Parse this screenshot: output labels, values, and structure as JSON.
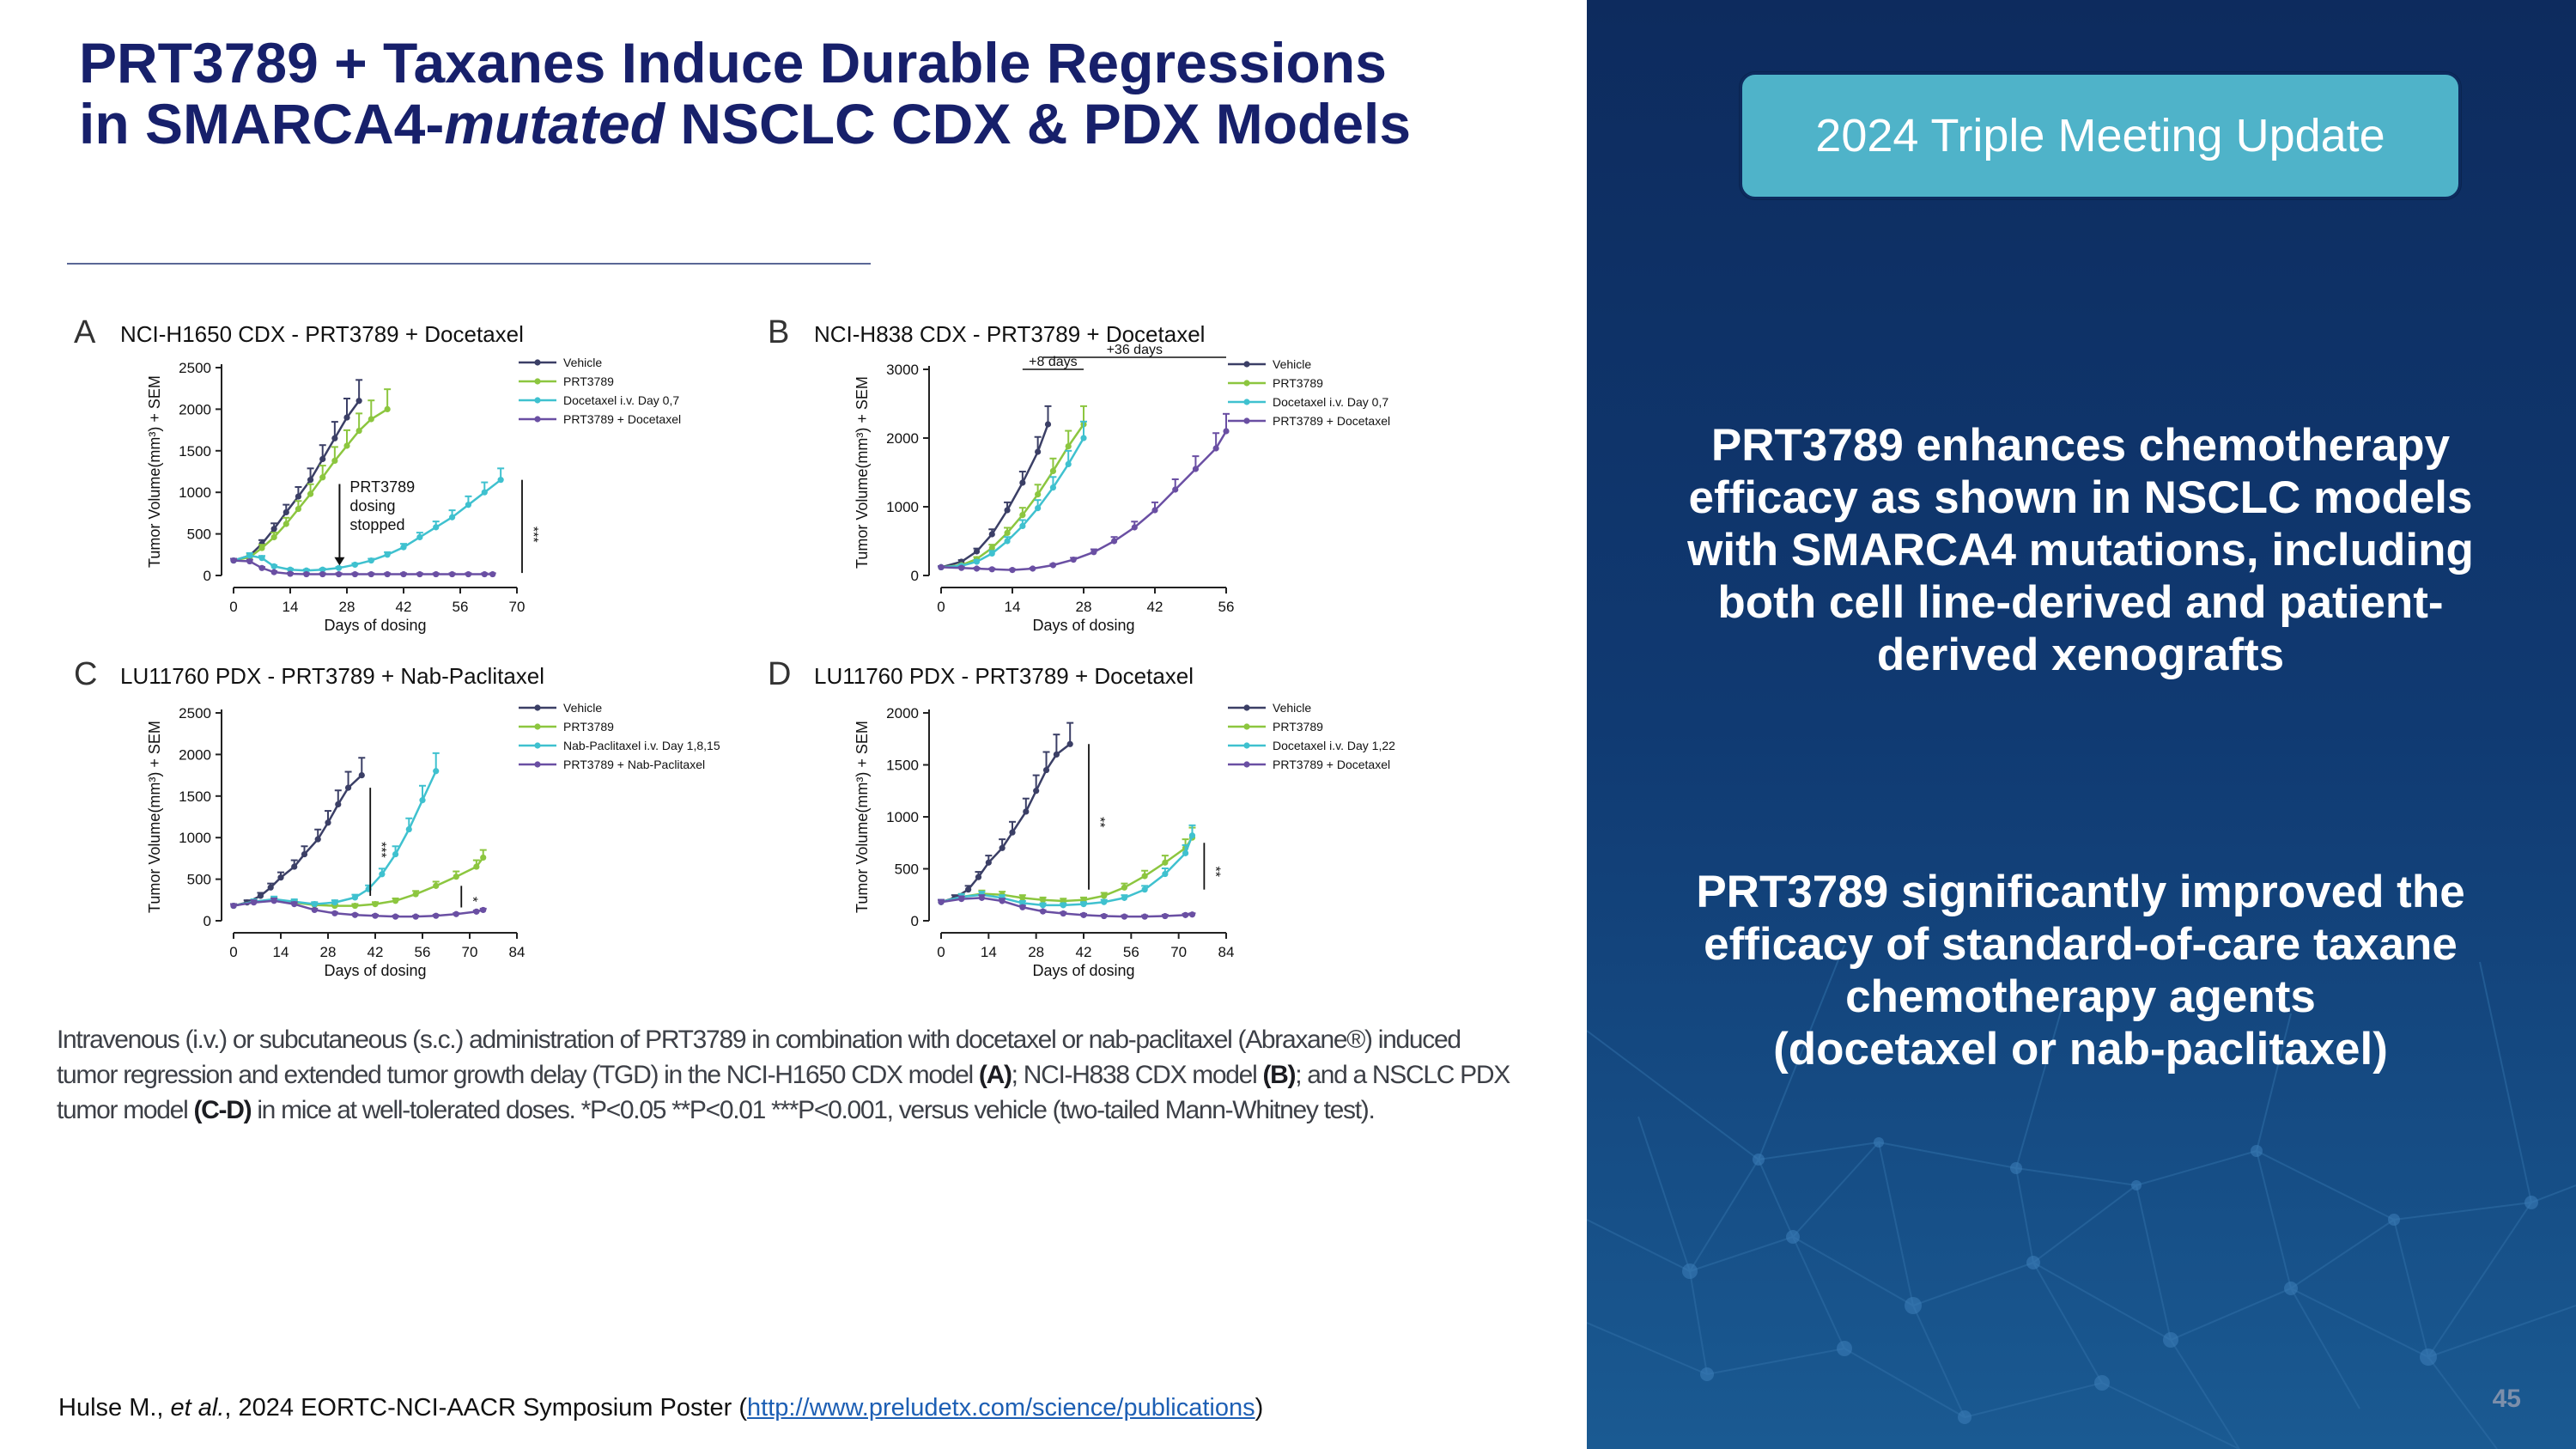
{
  "slide": {
    "title_line1": "PRT3789 + Taxanes Induce Durable Regressions",
    "title_line2_a": "in SMARCA4-",
    "title_line2_b": "mutated",
    "title_line2_c": " NSCLC CDX & PDX Models",
    "badge": "2024 Triple Meeting Update",
    "message1": "PRT3789 enhances chemotherapy efficacy as shown in NSCLC models with SMARCA4 mutations, including both cell line-derived and patient-derived xenografts",
    "message2_a": "PRT3789 significantly improved the efficacy of standard-of-care taxane chemotherapy agents",
    "message2_b": "(docetaxel or nab-paclitaxel)",
    "page_number": "45",
    "caption_1": "Intravenous (i.v.) or subcutaneous (s.c.) administration of PRT3789 in combination with docetaxel or nab-paclitaxel (Abraxane®) induced tumor regression and extended tumor growth delay (TGD) in the NCI-H1650 CDX model ",
    "caption_A": "(A)",
    "caption_2": "; NCI-H838 CDX model ",
    "caption_B": "(B)",
    "caption_3": "; and a NSCLC PDX tumor model ",
    "caption_CD": "(C-D)",
    "caption_4": " in mice at well-tolerated doses.  *P<0.05 **P<0.01 ***P<0.001, versus vehicle (two-tailed Mann-Whitney test).",
    "citation_a": "Hulse M., ",
    "citation_b": "et al.",
    "citation_c": ", 2024 EORTC-NCI-AACR Symposium Poster (",
    "citation_link": "http://www.preludetx.com/science/publications",
    "citation_d": ")"
  },
  "colors": {
    "title": "#17206b",
    "vehicle": "#3b3f66",
    "prt3789": "#8cc63f",
    "chemo": "#3fc1cf",
    "combo": "#6a4fa3",
    "panel_bg": "#0d2b5e",
    "badge": "#4fb3c9"
  },
  "chart_data": [
    {
      "panel": "A",
      "title": "NCI-H1650 CDX - PRT3789 + Docetaxel",
      "type": "line",
      "xlabel": "Days of dosing",
      "ylabel": "Tumor Volume(mm³) + SEM",
      "xlim": [
        0,
        70
      ],
      "ylim": [
        0,
        2500
      ],
      "xticks": [
        0,
        14,
        28,
        42,
        56,
        70
      ],
      "yticks": [
        0,
        500,
        1000,
        1500,
        2000,
        2500
      ],
      "legend": [
        "Vehicle",
        "PRT3789",
        "Docetaxel i.v. Day 0,7",
        "PRT3789 + Docetaxel"
      ],
      "annotation": [
        "PRT3789",
        "dosing",
        "stopped"
      ],
      "significance": "***",
      "series": [
        {
          "name": "Vehicle",
          "x": [
            0,
            4,
            7,
            10,
            13,
            16,
            19,
            22,
            25,
            28,
            31
          ],
          "y": [
            180,
            240,
            380,
            560,
            760,
            950,
            1150,
            1400,
            1650,
            1900,
            2100
          ]
        },
        {
          "name": "PRT3789",
          "x": [
            0,
            4,
            7,
            10,
            13,
            16,
            19,
            22,
            25,
            28,
            31,
            34,
            38
          ],
          "y": [
            180,
            220,
            330,
            460,
            620,
            800,
            980,
            1180,
            1380,
            1560,
            1740,
            1880,
            2000
          ]
        },
        {
          "name": "Docetaxel i.v. Day 0,7",
          "x": [
            0,
            4,
            7,
            10,
            14,
            18,
            22,
            26,
            30,
            34,
            38,
            42,
            46,
            50,
            54,
            58,
            62,
            66
          ],
          "y": [
            180,
            240,
            210,
            110,
            70,
            60,
            70,
            90,
            130,
            180,
            250,
            340,
            460,
            580,
            700,
            850,
            1000,
            1150
          ]
        },
        {
          "name": "PRT3789 + Docetaxel",
          "x": [
            0,
            4,
            7,
            10,
            14,
            18,
            22,
            26,
            30,
            34,
            38,
            42,
            46,
            50,
            54,
            58,
            62,
            64
          ],
          "y": [
            180,
            170,
            90,
            40,
            20,
            15,
            15,
            15,
            15,
            15,
            15,
            15,
            15,
            15,
            15,
            15,
            15,
            15
          ]
        }
      ]
    },
    {
      "panel": "B",
      "title": "NCI-H838 CDX - PRT3789 + Docetaxel",
      "type": "line",
      "xlabel": "Days of dosing",
      "ylabel": "Tumor Volume(mm³) + SEM",
      "xlim": [
        0,
        56
      ],
      "ylim": [
        0,
        3000
      ],
      "xticks": [
        0,
        14,
        28,
        42,
        56
      ],
      "yticks": [
        0,
        1000,
        2000,
        3000
      ],
      "legend": [
        "Vehicle",
        "PRT3789",
        "Docetaxel i.v. Day 0,7",
        "PRT3789 + Docetaxel"
      ],
      "brackets": [
        "+8 days",
        "+36 days"
      ],
      "series": [
        {
          "name": "Vehicle",
          "x": [
            0,
            4,
            7,
            10,
            13,
            16,
            19,
            21
          ],
          "y": [
            120,
            200,
            350,
            600,
            950,
            1350,
            1800,
            2200
          ]
        },
        {
          "name": "PRT3789",
          "x": [
            0,
            4,
            7,
            10,
            13,
            16,
            19,
            22,
            25,
            28
          ],
          "y": [
            120,
            150,
            240,
            400,
            620,
            880,
            1180,
            1520,
            1880,
            2200
          ]
        },
        {
          "name": "Docetaxel i.v. Day 0,7",
          "x": [
            0,
            4,
            7,
            10,
            13,
            16,
            19,
            22,
            25,
            28
          ],
          "y": [
            120,
            140,
            200,
            320,
            500,
            720,
            980,
            1280,
            1620,
            2000
          ]
        },
        {
          "name": "PRT3789 + Docetaxel",
          "x": [
            0,
            4,
            7,
            10,
            14,
            18,
            22,
            26,
            30,
            34,
            38,
            42,
            46,
            50,
            54,
            56
          ],
          "y": [
            120,
            110,
            100,
            90,
            80,
            100,
            150,
            230,
            340,
            500,
            700,
            950,
            1250,
            1550,
            1850,
            2100
          ]
        }
      ]
    },
    {
      "panel": "C",
      "title": "LU11760 PDX - PRT3789 + Nab-Paclitaxel",
      "type": "line",
      "xlabel": "Days of dosing",
      "ylabel": "Tumor Volume(mm³) + SEM",
      "xlim": [
        0,
        84
      ],
      "ylim": [
        0,
        2500
      ],
      "xticks": [
        0,
        14,
        28,
        42,
        56,
        70,
        84
      ],
      "yticks": [
        0,
        500,
        1000,
        1500,
        2000,
        2500
      ],
      "legend": [
        "Vehicle",
        "PRT3789",
        "Nab-Paclitaxel i.v. Day 1,8,15",
        "PRT3789 + Nab-Paclitaxel"
      ],
      "significance": [
        "***",
        "*"
      ],
      "series": [
        {
          "name": "Vehicle",
          "x": [
            0,
            4,
            8,
            11,
            14,
            18,
            21,
            25,
            28,
            31,
            34,
            38
          ],
          "y": [
            180,
            220,
            300,
            400,
            520,
            650,
            800,
            980,
            1180,
            1400,
            1600,
            1750
          ]
        },
        {
          "name": "PRT3789",
          "x": [
            0,
            6,
            12,
            18,
            24,
            30,
            36,
            42,
            48,
            54,
            60,
            66,
            72,
            74
          ],
          "y": [
            180,
            230,
            250,
            220,
            190,
            180,
            180,
            200,
            240,
            320,
            420,
            530,
            650,
            760
          ]
        },
        {
          "name": "Nab-Paclitaxel i.v. Day 1,8,15",
          "x": [
            0,
            6,
            12,
            18,
            24,
            30,
            36,
            40,
            44,
            48,
            52,
            56,
            60
          ],
          "y": [
            180,
            230,
            260,
            230,
            200,
            220,
            280,
            380,
            560,
            800,
            1100,
            1450,
            1800
          ]
        },
        {
          "name": "PRT3789 + Nab-Paclitaxel",
          "x": [
            0,
            6,
            12,
            18,
            24,
            30,
            36,
            42,
            48,
            54,
            60,
            66,
            72,
            74
          ],
          "y": [
            180,
            220,
            240,
            200,
            130,
            90,
            70,
            60,
            50,
            50,
            60,
            80,
            110,
            130
          ]
        }
      ]
    },
    {
      "panel": "D",
      "title": "LU11760 PDX - PRT3789 + Docetaxel",
      "type": "line",
      "xlabel": "Days of dosing",
      "ylabel": "Tumor Volume(mm³) + SEM",
      "xlim": [
        0,
        84
      ],
      "ylim": [
        0,
        2000
      ],
      "xticks": [
        0,
        14,
        28,
        42,
        56,
        70,
        84
      ],
      "yticks": [
        0,
        500,
        1000,
        1500,
        2000
      ],
      "legend": [
        "Vehicle",
        "PRT3789",
        "Docetaxel i.v. Day 1,22",
        "PRT3789 + Docetaxel"
      ],
      "significance": [
        "**",
        "**"
      ],
      "series": [
        {
          "name": "Vehicle",
          "x": [
            0,
            4,
            8,
            11,
            14,
            18,
            21,
            25,
            28,
            31,
            34,
            38
          ],
          "y": [
            180,
            220,
            300,
            420,
            560,
            700,
            850,
            1050,
            1250,
            1450,
            1600,
            1700
          ]
        },
        {
          "name": "PRT3789",
          "x": [
            0,
            6,
            12,
            18,
            24,
            30,
            36,
            42,
            48,
            54,
            60,
            66,
            72,
            74
          ],
          "y": [
            180,
            230,
            260,
            250,
            220,
            200,
            190,
            200,
            240,
            320,
            430,
            560,
            700,
            800
          ]
        },
        {
          "name": "Docetaxel i.v. Day 1,22",
          "x": [
            0,
            6,
            12,
            18,
            24,
            30,
            36,
            42,
            48,
            54,
            60,
            66,
            72,
            74
          ],
          "y": [
            180,
            230,
            250,
            220,
            170,
            150,
            150,
            160,
            180,
            220,
            300,
            450,
            650,
            820
          ]
        },
        {
          "name": "PRT3789 + Docetaxel",
          "x": [
            0,
            6,
            12,
            18,
            24,
            30,
            36,
            42,
            48,
            54,
            60,
            66,
            72,
            74
          ],
          "y": [
            180,
            210,
            220,
            190,
            130,
            90,
            70,
            55,
            45,
            40,
            40,
            45,
            55,
            60
          ]
        }
      ]
    }
  ]
}
